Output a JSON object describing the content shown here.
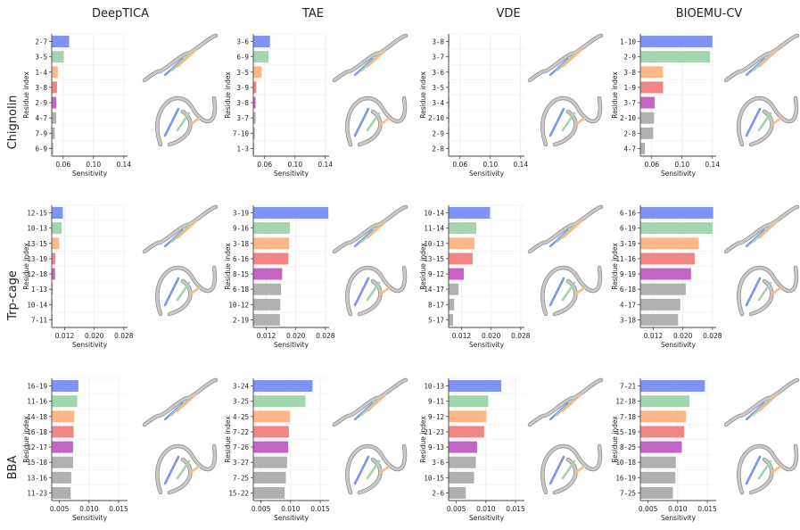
{
  "figure": {
    "methods": [
      "DeepTICA",
      "TAE",
      "VDE",
      "BIOEMU-CV"
    ],
    "proteins": [
      "Chignolin",
      "Trp-cage",
      "BBA"
    ],
    "xlabel": "Sensitivity",
    "ylabel": "Residue index"
  },
  "colors": {
    "rank": [
      "#7f93f4",
      "#a3d5b0",
      "#fbb78a",
      "#f08686",
      "#c464c4",
      "#b0b0b0",
      "#b0b0b0",
      "#b0b0b0"
    ],
    "ribbon": "#c9c9c9",
    "ribbon_edge": "#8a8a8a",
    "grid": "#ececec",
    "axis": "#444444",
    "text": "#222222"
  },
  "chart_data": [
    {
      "type": "bar",
      "protein": "Chignolin",
      "method": "DeepTICA",
      "orientation": "horizontal",
      "categories": [
        "2-7",
        "3-5",
        "1-4",
        "3-8",
        "2-9",
        "4-7",
        "7-9",
        "6-9"
      ],
      "values": [
        0.068,
        0.061,
        0.053,
        0.052,
        0.051,
        0.051,
        0.049,
        0.047
      ],
      "xlim": [
        0.045,
        0.145
      ],
      "xticks": [
        "0.06",
        "0.10",
        "0.14"
      ],
      "xtick_values": [
        0.06,
        0.1,
        0.14
      ]
    },
    {
      "type": "bar",
      "protein": "Chignolin",
      "method": "TAE",
      "orientation": "horizontal",
      "categories": [
        "3-6",
        "6-9",
        "3-5",
        "3-9",
        "3-8",
        "3-7",
        "7-10",
        "1-3"
      ],
      "values": [
        0.067,
        0.065,
        0.056,
        0.049,
        0.048,
        0.048,
        0.047,
        0.046
      ],
      "xlim": [
        0.045,
        0.145
      ],
      "xticks": [
        "0.06",
        "0.10",
        "0.14"
      ],
      "xtick_values": [
        0.06,
        0.1,
        0.14
      ]
    },
    {
      "type": "bar",
      "protein": "Chignolin",
      "method": "VDE",
      "orientation": "horizontal",
      "categories": [
        "3-8",
        "3-7",
        "3-6",
        "3-5",
        "3-4",
        "2-10",
        "2-9",
        "2-8"
      ],
      "values": [
        0.0455,
        0.0455,
        0.0455,
        0.0455,
        0.0455,
        0.0455,
        0.0455,
        0.0455
      ],
      "xlim": [
        0.045,
        0.145
      ],
      "xticks": [
        "0.06",
        "0.10",
        "0.14"
      ],
      "xtick_values": [
        0.06,
        0.1,
        0.14
      ]
    },
    {
      "type": "bar",
      "protein": "Chignolin",
      "method": "BIOEMU-CV",
      "orientation": "horizontal",
      "categories": [
        "1-10",
        "2-9",
        "3-8",
        "1-9",
        "3-7",
        "2-10",
        "2-8",
        "4-7"
      ],
      "values": [
        0.14,
        0.137,
        0.075,
        0.075,
        0.064,
        0.063,
        0.062,
        0.051
      ],
      "xlim": [
        0.045,
        0.145
      ],
      "xticks": [
        "0.06",
        "0.10",
        "0.14"
      ],
      "xtick_values": [
        0.06,
        0.1,
        0.14
      ]
    },
    {
      "type": "bar",
      "protein": "Trp-cage",
      "method": "DeepTICA",
      "orientation": "horizontal",
      "categories": [
        "12-15",
        "10-13",
        "13-15",
        "13-19",
        "12-18",
        "1-13",
        "10-14",
        "7-11"
      ],
      "values": [
        0.0115,
        0.0112,
        0.0105,
        0.0095,
        0.0094,
        0.0088,
        0.0087,
        0.0087
      ],
      "xlim": [
        0.0085,
        0.029
      ],
      "xticks": [
        "0.012",
        "0.020",
        "0.028"
      ],
      "xtick_values": [
        0.012,
        0.02,
        0.028
      ]
    },
    {
      "type": "bar",
      "protein": "Trp-cage",
      "method": "TAE",
      "orientation": "horizontal",
      "categories": [
        "3-19",
        "9-16",
        "3-18",
        "6-16",
        "8-15",
        "6-18",
        "10-12",
        "2-19"
      ],
      "values": [
        0.0288,
        0.0184,
        0.0182,
        0.018,
        0.0163,
        0.016,
        0.0158,
        0.0157
      ],
      "xlim": [
        0.0085,
        0.029
      ],
      "xticks": [
        "0.012",
        "0.020",
        "0.028"
      ],
      "xtick_values": [
        0.012,
        0.02,
        0.028
      ]
    },
    {
      "type": "bar",
      "protein": "Trp-cage",
      "method": "VDE",
      "orientation": "horizontal",
      "categories": [
        "10-14",
        "11-14",
        "10-13",
        "13-15",
        "9-12",
        "14-17",
        "8-17",
        "5-17"
      ],
      "values": [
        0.0197,
        0.016,
        0.0155,
        0.015,
        0.0126,
        0.0112,
        0.01,
        0.0097
      ],
      "xlim": [
        0.0085,
        0.029
      ],
      "xticks": [
        "0.012",
        "0.020",
        "0.028"
      ],
      "xtick_values": [
        0.012,
        0.02,
        0.028
      ]
    },
    {
      "type": "bar",
      "protein": "Trp-cage",
      "method": "BIOEMU-CV",
      "orientation": "horizontal",
      "categories": [
        "6-16",
        "6-19",
        "3-19",
        "11-16",
        "9-19",
        "6-18",
        "4-17",
        "3-18"
      ],
      "values": [
        0.0282,
        0.0281,
        0.0243,
        0.0232,
        0.0222,
        0.0208,
        0.0193,
        0.0187
      ],
      "xlim": [
        0.0085,
        0.029
      ],
      "xticks": [
        "0.012",
        "0.020",
        "0.028"
      ],
      "xtick_values": [
        0.012,
        0.02,
        0.028
      ]
    },
    {
      "type": "bar",
      "protein": "BBA",
      "method": "DeepTICA",
      "orientation": "horizontal",
      "categories": [
        "16-19",
        "11-16",
        "14-18",
        "16-18",
        "12-17",
        "15-18",
        "13-16",
        "11-23"
      ],
      "values": [
        0.0082,
        0.008,
        0.0075,
        0.0074,
        0.0073,
        0.0073,
        0.007,
        0.0069
      ],
      "xlim": [
        0.0037,
        0.0165
      ],
      "xticks": [
        "0.005",
        "0.010",
        "0.015"
      ],
      "xtick_values": [
        0.005,
        0.01,
        0.015
      ]
    },
    {
      "type": "bar",
      "protein": "BBA",
      "method": "TAE",
      "orientation": "horizontal",
      "categories": [
        "3-24",
        "3-25",
        "4-25",
        "7-22",
        "7-26",
        "3-27",
        "7-25",
        "15-22"
      ],
      "values": [
        0.0137,
        0.0125,
        0.0099,
        0.0097,
        0.0096,
        0.0094,
        0.0092,
        0.009
      ],
      "xlim": [
        0.0037,
        0.0165
      ],
      "xticks": [
        "0.005",
        "0.010",
        "0.015"
      ],
      "xtick_values": [
        0.005,
        0.01,
        0.015
      ]
    },
    {
      "type": "bar",
      "protein": "BBA",
      "method": "VDE",
      "orientation": "horizontal",
      "categories": [
        "10-13",
        "9-11",
        "9-12",
        "21-23",
        "9-13",
        "3-6",
        "10-15",
        "2-6"
      ],
      "values": [
        0.0126,
        0.0104,
        0.0101,
        0.0097,
        0.0085,
        0.0083,
        0.008,
        0.0066
      ],
      "xlim": [
        0.0037,
        0.0165
      ],
      "xticks": [
        "0.005",
        "0.010",
        "0.015"
      ],
      "xtick_values": [
        0.005,
        0.01,
        0.015
      ]
    },
    {
      "type": "bar",
      "protein": "BBA",
      "method": "BIOEMU-CV",
      "orientation": "horizontal",
      "categories": [
        "7-21",
        "12-18",
        "7-18",
        "15-19",
        "8-25",
        "10-18",
        "16-19",
        "7-25"
      ],
      "values": [
        0.0146,
        0.012,
        0.0114,
        0.0111,
        0.0107,
        0.0097,
        0.0096,
        0.0092
      ],
      "xlim": [
        0.0037,
        0.0165
      ],
      "xticks": [
        "0.005",
        "0.010",
        "0.015"
      ],
      "xtick_values": [
        0.005,
        0.01,
        0.015
      ]
    }
  ]
}
